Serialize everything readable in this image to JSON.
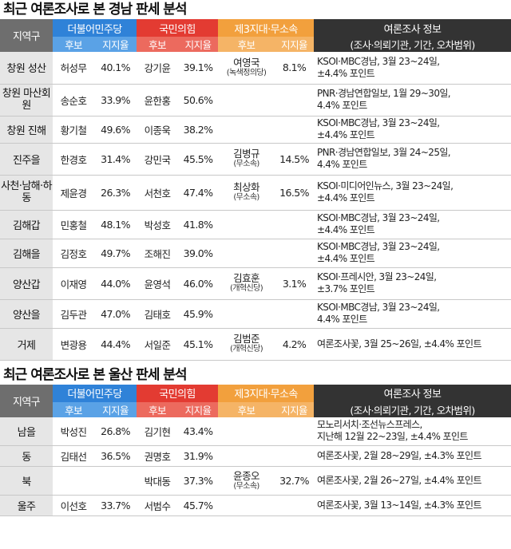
{
  "gyeongnam": {
    "title": "최근 여론조사로 본 경남 판세 분석",
    "headers": {
      "region": "지역구",
      "dem": "더불어민주당",
      "ppp": "국민의힘",
      "third": "제3지대·무소속",
      "info": "여론조사 정보",
      "info_sub": "(조사·의뢰기관, 기간, 오차범위)",
      "candidate": "후보",
      "support": "지지율"
    },
    "rows": [
      {
        "region": "창원 성산",
        "dem_name": "허성무",
        "dem_pct": "40.1%",
        "ppp_name": "강기윤",
        "ppp_pct": "39.1%",
        "third_name": "여영국",
        "third_party": "(녹색정의당)",
        "third_pct": "8.1%",
        "info1": "KSOI·MBC경남, 3월 23~24일,",
        "info2": "±4.4% 포인트"
      },
      {
        "region": "창원 마산회원",
        "dem_name": "송순호",
        "dem_pct": "33.9%",
        "ppp_name": "윤한홍",
        "ppp_pct": "50.6%",
        "third_name": "",
        "third_party": "",
        "third_pct": "",
        "info1": "PNR·경남연합일보, 1월 29~30일,",
        "info2": "4.4% 포인트"
      },
      {
        "region": "창원 진해",
        "dem_name": "황기철",
        "dem_pct": "49.6%",
        "ppp_name": "이종욱",
        "ppp_pct": "38.2%",
        "third_name": "",
        "third_party": "",
        "third_pct": "",
        "info1": "KSOI·MBC경남, 3월 23~24일,",
        "info2": "±4.4% 포인트"
      },
      {
        "region": "진주을",
        "dem_name": "한경호",
        "dem_pct": "31.4%",
        "ppp_name": "강민국",
        "ppp_pct": "45.5%",
        "third_name": "김병규",
        "third_party": "(무소속)",
        "third_pct": "14.5%",
        "info1": "PNR·경남연합일보, 3월 24~25일,",
        "info2": "4.4% 포인트"
      },
      {
        "region": "사천·남해·하동",
        "dem_name": "제윤경",
        "dem_pct": "26.3%",
        "ppp_name": "서천호",
        "ppp_pct": "47.4%",
        "third_name": "최상화",
        "third_party": "(무소속)",
        "third_pct": "16.5%",
        "info1": "KSOI·미디어인뉴스, 3월 23~24일,",
        "info2": "±4.4% 포인트"
      },
      {
        "region": "김해갑",
        "dem_name": "민홍철",
        "dem_pct": "48.1%",
        "ppp_name": "박성호",
        "ppp_pct": "41.8%",
        "third_name": "",
        "third_party": "",
        "third_pct": "",
        "info1": "KSOI·MBC경남, 3월 23~24일,",
        "info2": "±4.4% 포인트"
      },
      {
        "region": "김해을",
        "dem_name": "김정호",
        "dem_pct": "49.7%",
        "ppp_name": "조해진",
        "ppp_pct": "39.0%",
        "third_name": "",
        "third_party": "",
        "third_pct": "",
        "info1": "KSOI·MBC경남, 3월 23~24일,",
        "info2": "±4.4% 포인트"
      },
      {
        "region": "양산갑",
        "dem_name": "이재영",
        "dem_pct": "44.0%",
        "ppp_name": "윤영석",
        "ppp_pct": "46.0%",
        "third_name": "김효훈",
        "third_party": "(개혁신당)",
        "third_pct": "3.1%",
        "info1": "KSOI·프레시안, 3월 23~24일,",
        "info2": "±3.7% 포인트"
      },
      {
        "region": "양산을",
        "dem_name": "김두관",
        "dem_pct": "47.0%",
        "ppp_name": "김태호",
        "ppp_pct": "45.9%",
        "third_name": "",
        "third_party": "",
        "third_pct": "",
        "info1": "KSOI·MBC경남, 3월 23~24일,",
        "info2": "4.4% 포인트"
      },
      {
        "region": "거제",
        "dem_name": "변광용",
        "dem_pct": "44.4%",
        "ppp_name": "서일준",
        "ppp_pct": "45.1%",
        "third_name": "김범준",
        "third_party": "(개혁신당)",
        "third_pct": "4.2%",
        "info1": "여론조사꽃, 3월 25~26일, ±4.4% 포인트",
        "info2": ""
      }
    ]
  },
  "ulsan": {
    "title": "최근 여론조사로 본 울산 판세 분석",
    "headers": {
      "region": "지역구",
      "dem": "더불어민주당",
      "ppp": "국민의힘",
      "third": "제3지대·무소속",
      "info": "여론조사 정보",
      "info_sub": "(조사·의뢰기관, 기간, 오차범위)",
      "candidate": "후보",
      "support": "지지율"
    },
    "rows": [
      {
        "region": "남을",
        "dem_name": "박성진",
        "dem_pct": "26.8%",
        "ppp_name": "김기현",
        "ppp_pct": "43.4%",
        "third_name": "",
        "third_party": "",
        "third_pct": "",
        "info1": "모노리서치·조선뉴스프레스,",
        "info2": "지난해 12월 22~23일, ±4.4% 포인트"
      },
      {
        "region": "동",
        "dem_name": "김태선",
        "dem_pct": "36.5%",
        "ppp_name": "권명호",
        "ppp_pct": "31.9%",
        "third_name": "",
        "third_party": "",
        "third_pct": "",
        "info1": "여론조사꽃, 2월 28~29일, ±4.3% 포인트",
        "info2": ""
      },
      {
        "region": "북",
        "dem_name": "",
        "dem_pct": "",
        "ppp_name": "박대동",
        "ppp_pct": "37.3%",
        "third_name": "윤종오",
        "third_party": "(무소속)",
        "third_pct": "32.7%",
        "info1": "여론조사꽃, 2월 26~27일, ±4.4% 포인트",
        "info2": ""
      },
      {
        "region": "울주",
        "dem_name": "이선호",
        "dem_pct": "33.7%",
        "ppp_name": "서범수",
        "ppp_pct": "45.7%",
        "third_name": "",
        "third_party": "",
        "third_pct": "",
        "info1": "여론조사꽃, 3월 13~14일, ±4.3% 포인트",
        "info2": ""
      }
    ]
  },
  "colors": {
    "dem": "#2f82d8",
    "ppp": "#e33b32",
    "third": "#f2a03d",
    "info_header": "#333333",
    "region_bg": "#e6e6e6"
  }
}
